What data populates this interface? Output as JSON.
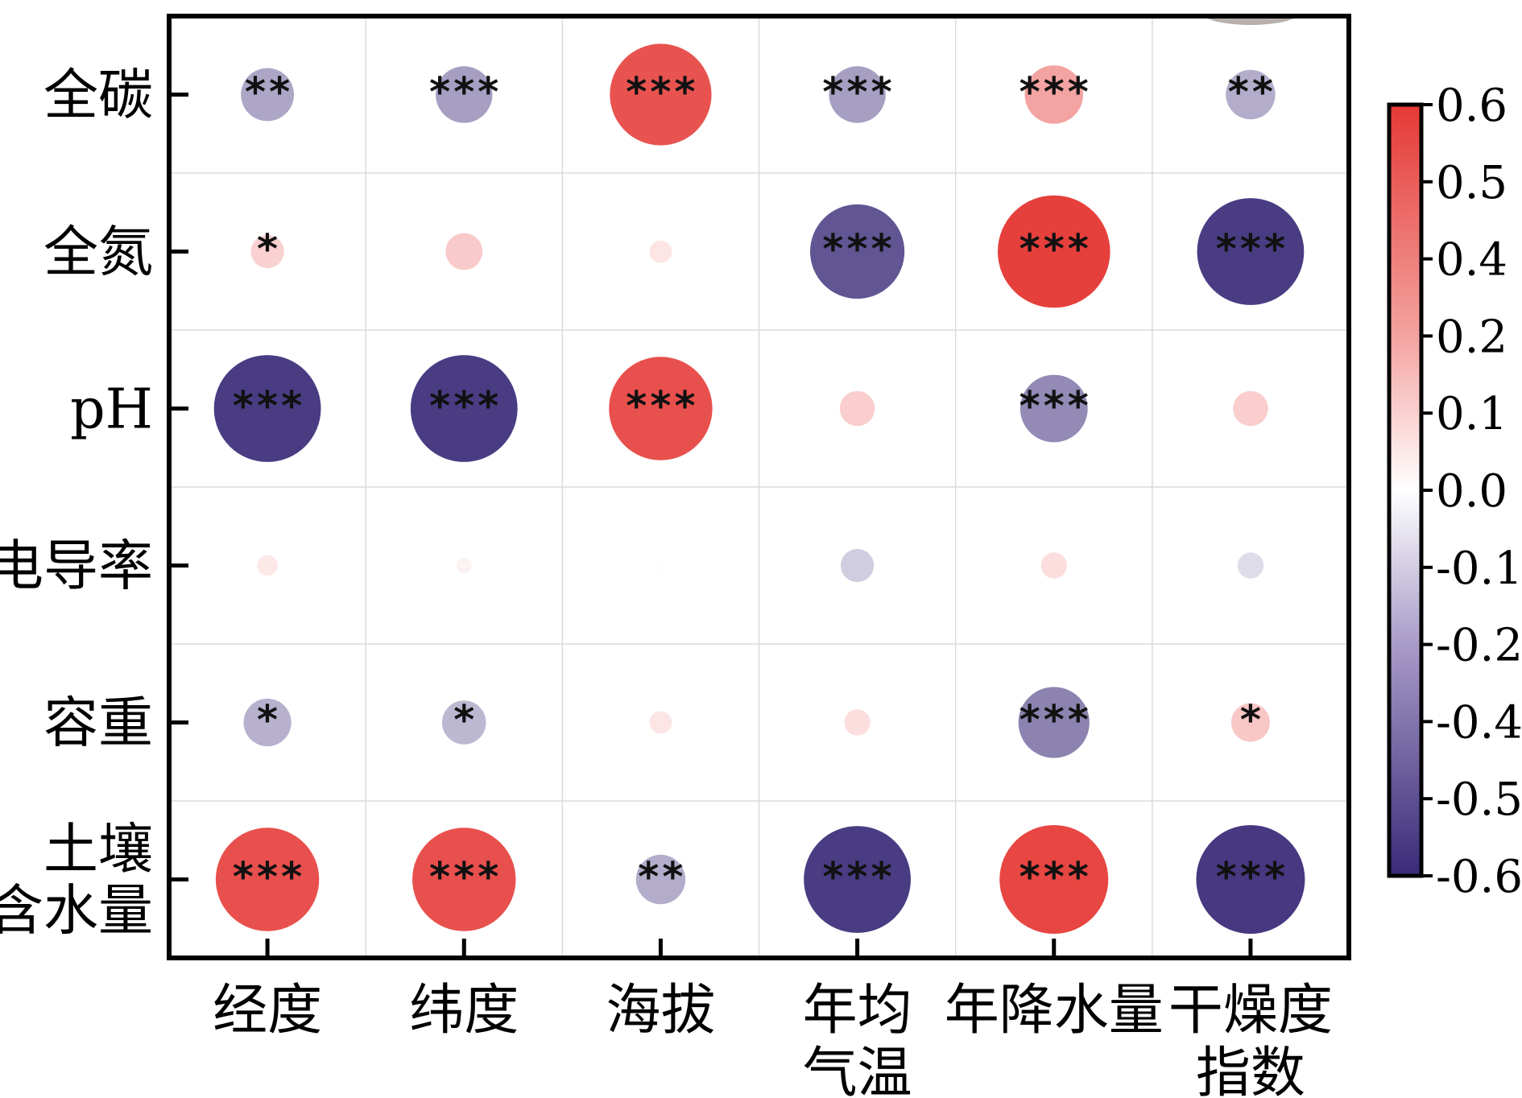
{
  "chart_data": {
    "type": "heatmap",
    "style": "bubble-correlation-matrix",
    "rows": [
      {
        "id": "total-carbon",
        "lines": [
          "全碳"
        ]
      },
      {
        "id": "total-nitrogen",
        "lines": [
          "全氮"
        ]
      },
      {
        "id": "ph",
        "lines": [
          "pH"
        ]
      },
      {
        "id": "conductivity",
        "lines": [
          "电导率"
        ]
      },
      {
        "id": "bulk-density",
        "lines": [
          "容重"
        ]
      },
      {
        "id": "soil-moisture",
        "lines": [
          "土壤",
          "含水量"
        ]
      }
    ],
    "columns": [
      {
        "id": "longitude",
        "lines": [
          "经度"
        ]
      },
      {
        "id": "latitude",
        "lines": [
          "纬度"
        ]
      },
      {
        "id": "altitude",
        "lines": [
          "海拔"
        ]
      },
      {
        "id": "mean-annual-temperature",
        "lines": [
          "年均",
          "气温"
        ]
      },
      {
        "id": "annual-precipitation",
        "lines": [
          "年降水量"
        ]
      },
      {
        "id": "aridity-index",
        "lines": [
          "干燥度",
          "指数"
        ]
      }
    ],
    "values": [
      [
        -0.25,
        -0.27,
        0.52,
        -0.27,
        0.28,
        -0.23
      ],
      [
        0.14,
        0.16,
        0.08,
        -0.48,
        0.58,
        -0.55
      ],
      [
        -0.55,
        -0.55,
        0.53,
        0.15,
        -0.33,
        0.15
      ],
      [
        0.07,
        0.04,
        0.01,
        -0.14,
        0.1,
        -0.1
      ],
      [
        -0.22,
        -0.2,
        0.08,
        0.1,
        -0.35,
        0.17
      ],
      [
        0.53,
        0.53,
        -0.23,
        -0.55,
        0.56,
        -0.56
      ]
    ],
    "significance": [
      [
        "**",
        "***",
        "***",
        "***",
        "***",
        "**"
      ],
      [
        "*",
        "",
        "",
        "***",
        "***",
        "***"
      ],
      [
        "***",
        "***",
        "***",
        "",
        "***",
        ""
      ],
      [
        "",
        "",
        "",
        "",
        "",
        ""
      ],
      [
        "*",
        "*",
        "",
        "",
        "***",
        "*"
      ],
      [
        "***",
        "***",
        "**",
        "***",
        "***",
        "***"
      ]
    ],
    "colorbar": {
      "min": -0.6,
      "max": 0.6,
      "ticks": [
        "0.6",
        "0.5",
        "0.4",
        "0.2",
        "0.1",
        "0.0",
        "-0.1",
        "-0.2",
        "-0.4",
        "-0.5",
        "-0.6"
      ],
      "colors": {
        "positive": "#e53935",
        "neutral": "#ffffff",
        "negative": "#3a2a78"
      }
    },
    "grid": true,
    "legend": "right"
  }
}
